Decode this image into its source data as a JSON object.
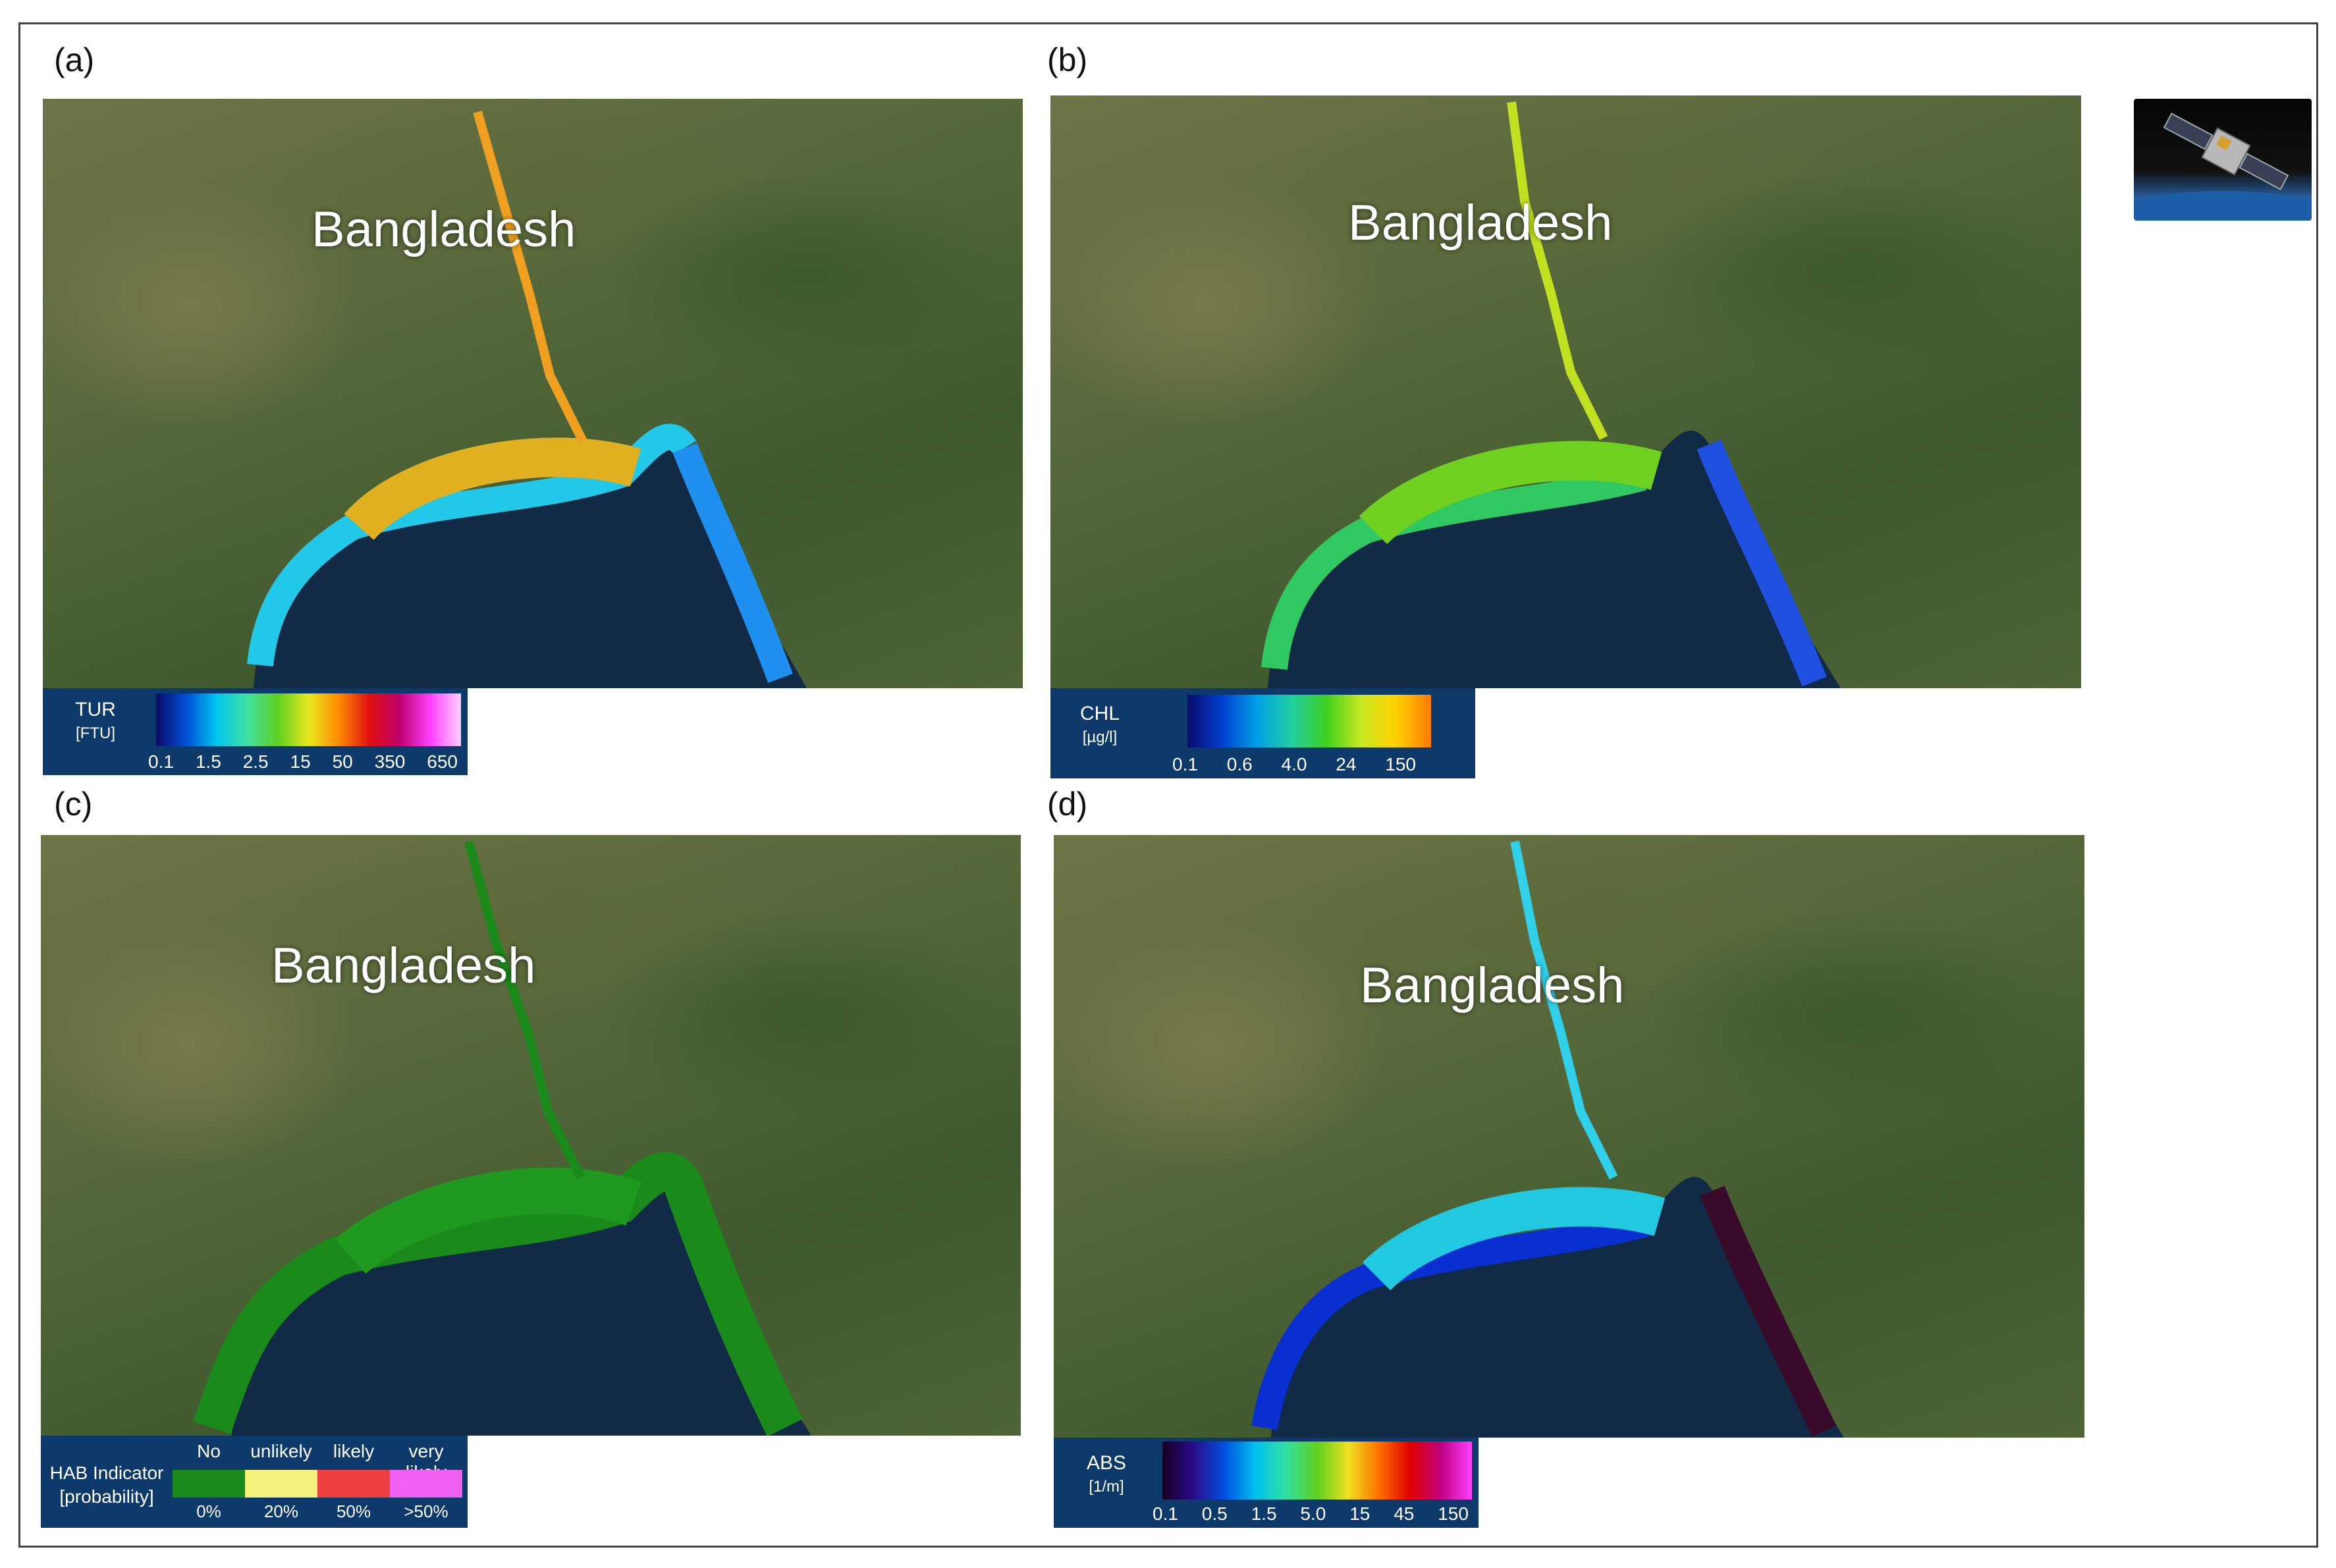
{
  "panels": [
    {
      "label": "(a)",
      "country": "Bangladesh",
      "legend": {
        "title": "TUR",
        "unit": "[FTU]",
        "ticks": [
          "0.1",
          "1.5",
          "2.5",
          "15",
          "50",
          "350",
          "650"
        ],
        "gradient": [
          "#0b0b6a",
          "#0050d8",
          "#00c8f0",
          "#40e0a0",
          "#5fd020",
          "#e8e820",
          "#ff8a00",
          "#e01010",
          "#c00070",
          "#ff40ff",
          "#ffd0ff"
        ]
      }
    },
    {
      "label": "(b)",
      "country": "Bangladesh",
      "legend": {
        "title": "CHL",
        "unit": "[µg/l]",
        "ticks": [
          "0.1",
          "0.6",
          "4.0",
          "24",
          "150"
        ],
        "gradient": [
          "#0b0b6a",
          "#0040d0",
          "#00a0e8",
          "#20d0a0",
          "#40d020",
          "#c8e820",
          "#ffd000",
          "#ff7a00"
        ]
      }
    },
    {
      "label": "(c)",
      "country": "Bangladesh",
      "legend": {
        "title": "HAB Indicator",
        "unit": "[probability]",
        "categories": [
          "No",
          "unlikely",
          "likely",
          "very likely"
        ],
        "ticks": [
          "0%",
          "20%",
          "50%",
          ">50%"
        ],
        "colors": [
          "#1a8a1a",
          "#f4f27a",
          "#f04040",
          "#f060f0"
        ]
      }
    },
    {
      "label": "(d)",
      "country": "Bangladesh",
      "legend": {
        "title": "ABS",
        "unit": "[1/m]",
        "ticks": [
          "0.1",
          "0.5",
          "1.5",
          "5.0",
          "15",
          "45",
          "150"
        ],
        "gradient": [
          "#1a0020",
          "#2a0a8a",
          "#0050e0",
          "#00c0f0",
          "#30e0a0",
          "#60d020",
          "#f0e020",
          "#ff7000",
          "#e00000",
          "#c00080",
          "#ff40ff"
        ]
      }
    }
  ]
}
